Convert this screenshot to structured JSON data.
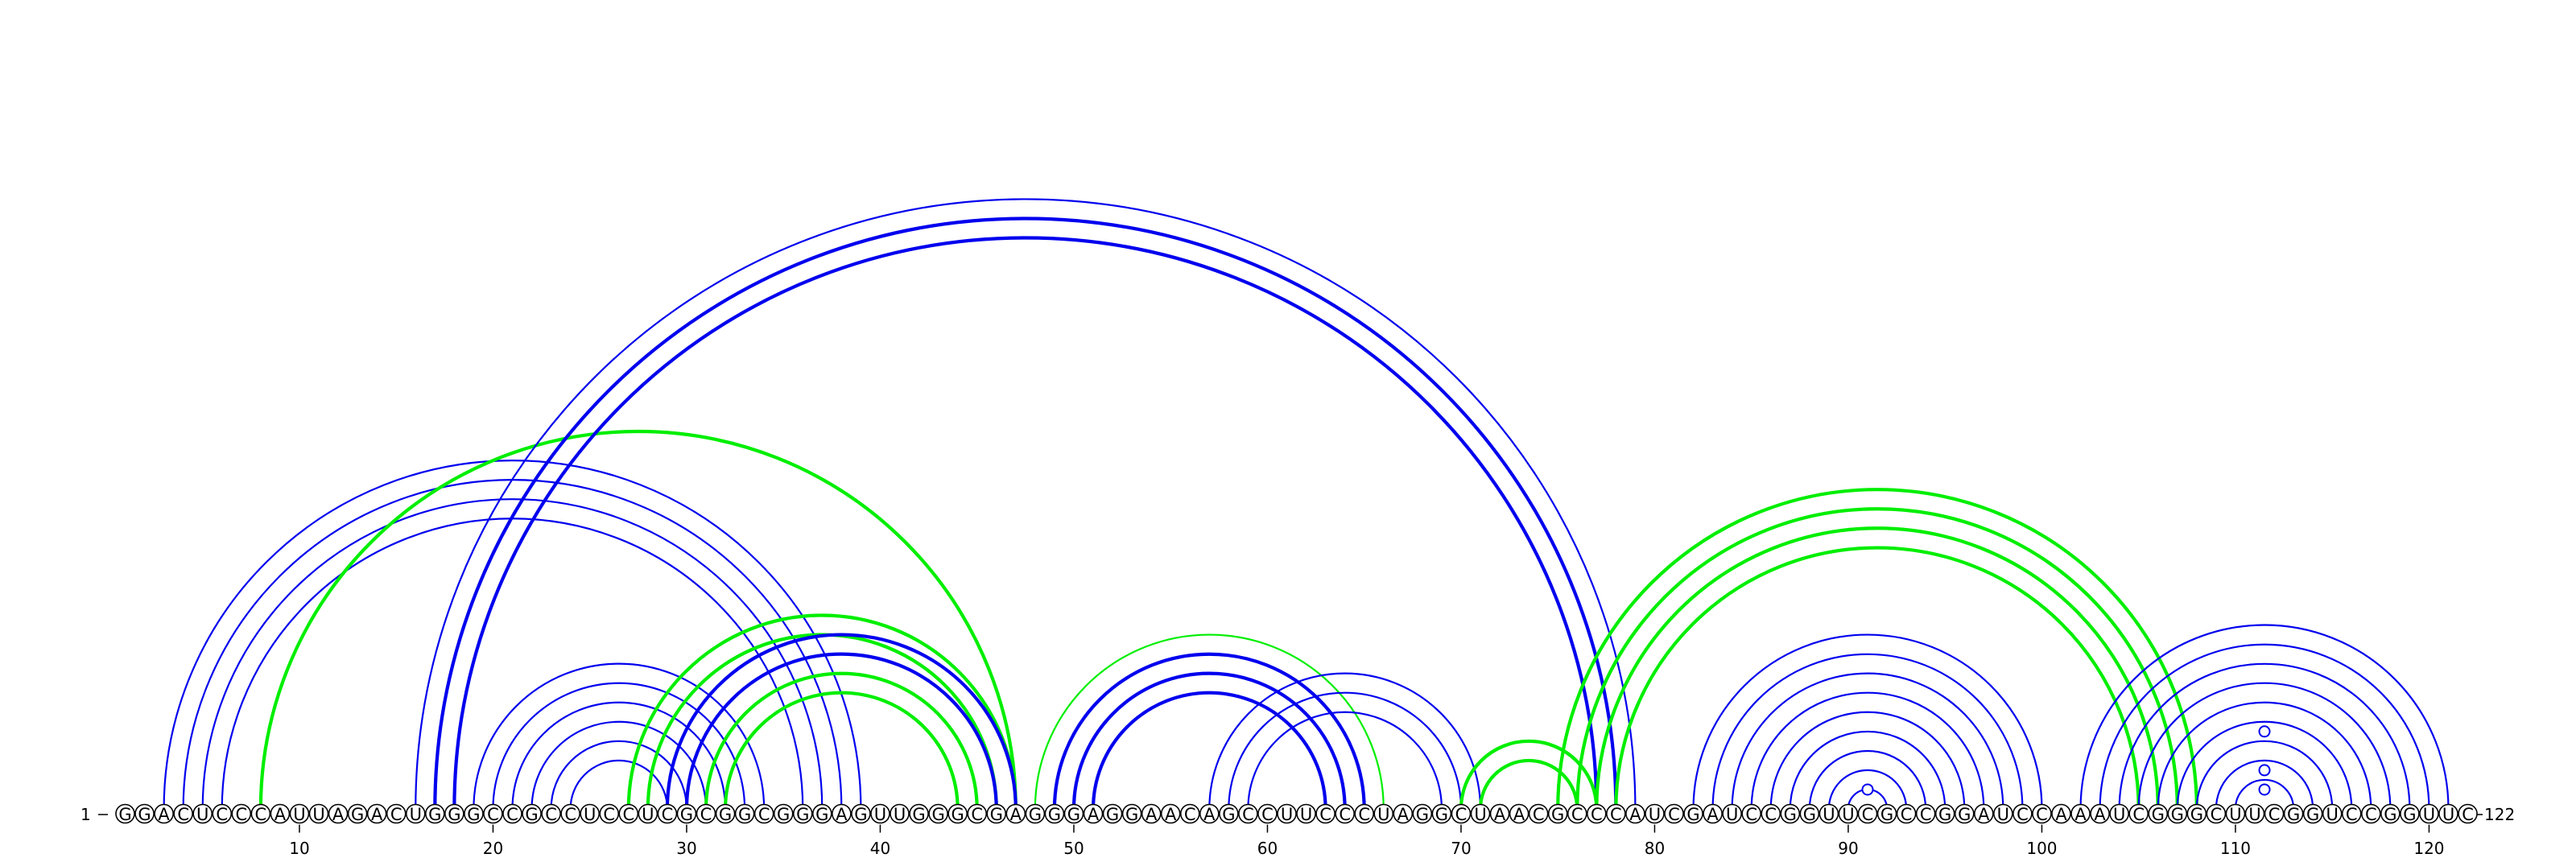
{
  "diagram": {
    "sequence": "GGACUCCCAUUAGACUGGGCCGCCUCCUCGCGGCGGGAGUUGGGCGAGGGAGGAACAGCCUUCCCUAGGCUAACGCCCAUCGAUCCGGUUCGCCGGAUCCAAAUCGGGCUUCGGUCCGGUUC",
    "start_label": "1",
    "end_label": "122",
    "ticks": [
      {
        "pos": 10,
        "label": "10"
      },
      {
        "pos": 20,
        "label": "20"
      },
      {
        "pos": 30,
        "label": "30"
      },
      {
        "pos": 40,
        "label": "40"
      },
      {
        "pos": 50,
        "label": "50"
      },
      {
        "pos": 60,
        "label": "60"
      },
      {
        "pos": 70,
        "label": "70"
      },
      {
        "pos": 80,
        "label": "80"
      },
      {
        "pos": 90,
        "label": "90"
      },
      {
        "pos": 100,
        "label": "100"
      },
      {
        "pos": 110,
        "label": "110"
      },
      {
        "pos": 120,
        "label": "120"
      }
    ],
    "colors": {
      "blue": "#0000ee",
      "green": "#00ee00"
    },
    "arcs": [
      {
        "i": 3,
        "j": 39,
        "color": "blue",
        "weight": "thin"
      },
      {
        "i": 4,
        "j": 38,
        "color": "blue",
        "weight": "thin"
      },
      {
        "i": 5,
        "j": 37,
        "color": "blue",
        "weight": "thin"
      },
      {
        "i": 6,
        "j": 36,
        "color": "blue",
        "weight": "thin"
      },
      {
        "i": 8,
        "j": 47,
        "color": "green",
        "weight": "thick"
      },
      {
        "i": 16,
        "j": 79,
        "color": "blue",
        "weight": "thin"
      },
      {
        "i": 17,
        "j": 78,
        "color": "blue",
        "weight": "thick"
      },
      {
        "i": 18,
        "j": 77,
        "color": "blue",
        "weight": "thick"
      },
      {
        "i": 19,
        "j": 34,
        "color": "blue",
        "weight": "thin"
      },
      {
        "i": 20,
        "j": 33,
        "color": "blue",
        "weight": "thin"
      },
      {
        "i": 21,
        "j": 32,
        "color": "blue",
        "weight": "thin"
      },
      {
        "i": 22,
        "j": 31,
        "color": "blue",
        "weight": "thin"
      },
      {
        "i": 23,
        "j": 30,
        "color": "blue",
        "weight": "thin"
      },
      {
        "i": 24,
        "j": 29,
        "color": "blue",
        "weight": "thin"
      },
      {
        "i": 27,
        "j": 47,
        "color": "green",
        "weight": "thick"
      },
      {
        "i": 28,
        "j": 46,
        "color": "green",
        "weight": "thick"
      },
      {
        "i": 29,
        "j": 47,
        "color": "blue",
        "weight": "thick"
      },
      {
        "i": 30,
        "j": 46,
        "color": "blue",
        "weight": "thick"
      },
      {
        "i": 31,
        "j": 45,
        "color": "green",
        "weight": "thick"
      },
      {
        "i": 32,
        "j": 44,
        "color": "green",
        "weight": "thick"
      },
      {
        "i": 48,
        "j": 66,
        "color": "green",
        "weight": "thin"
      },
      {
        "i": 49,
        "j": 65,
        "color": "blue",
        "weight": "thick"
      },
      {
        "i": 50,
        "j": 64,
        "color": "blue",
        "weight": "thick"
      },
      {
        "i": 51,
        "j": 63,
        "color": "blue",
        "weight": "thick"
      },
      {
        "i": 57,
        "j": 71,
        "color": "blue",
        "weight": "thin"
      },
      {
        "i": 58,
        "j": 70,
        "color": "blue",
        "weight": "thin"
      },
      {
        "i": 59,
        "j": 69,
        "color": "blue",
        "weight": "thin"
      },
      {
        "i": 70,
        "j": 77,
        "color": "green",
        "weight": "thick"
      },
      {
        "i": 71,
        "j": 76,
        "color": "green",
        "weight": "thick"
      },
      {
        "i": 75,
        "j": 108,
        "color": "green",
        "weight": "thick"
      },
      {
        "i": 76,
        "j": 107,
        "color": "green",
        "weight": "thick"
      },
      {
        "i": 77,
        "j": 106,
        "color": "green",
        "weight": "thick"
      },
      {
        "i": 78,
        "j": 105,
        "color": "green",
        "weight": "thick"
      },
      {
        "i": 82,
        "j": 100,
        "color": "blue",
        "weight": "thin"
      },
      {
        "i": 83,
        "j": 99,
        "color": "blue",
        "weight": "thin"
      },
      {
        "i": 84,
        "j": 98,
        "color": "blue",
        "weight": "thin"
      },
      {
        "i": 85,
        "j": 97,
        "color": "blue",
        "weight": "thin"
      },
      {
        "i": 86,
        "j": 96,
        "color": "blue",
        "weight": "thin"
      },
      {
        "i": 87,
        "j": 95,
        "color": "blue",
        "weight": "thin"
      },
      {
        "i": 88,
        "j": 94,
        "color": "blue",
        "weight": "thin"
      },
      {
        "i": 89,
        "j": 93,
        "color": "blue",
        "weight": "thin"
      },
      {
        "i": 90,
        "j": 92,
        "color": "blue",
        "weight": "thin"
      },
      {
        "i": 102,
        "j": 121,
        "color": "blue",
        "weight": "thin"
      },
      {
        "i": 103,
        "j": 120,
        "color": "blue",
        "weight": "thin"
      },
      {
        "i": 104,
        "j": 119,
        "color": "blue",
        "weight": "thin"
      },
      {
        "i": 105,
        "j": 118,
        "color": "blue",
        "weight": "thin"
      },
      {
        "i": 106,
        "j": 117,
        "color": "blue",
        "weight": "thin"
      },
      {
        "i": 107,
        "j": 116,
        "color": "blue",
        "weight": "thin"
      },
      {
        "i": 108,
        "j": 115,
        "color": "blue",
        "weight": "thin"
      },
      {
        "i": 109,
        "j": 114,
        "color": "blue",
        "weight": "thin"
      },
      {
        "i": 110,
        "j": 113,
        "color": "blue",
        "weight": "thin"
      }
    ],
    "markers": [
      {
        "center": 91,
        "level": 1,
        "color": "blue"
      },
      {
        "center": 111.5,
        "level": 1,
        "color": "blue"
      },
      {
        "center": 111.5,
        "level": 2,
        "color": "blue"
      },
      {
        "center": 111.5,
        "level": 4,
        "color": "blue"
      }
    ]
  }
}
